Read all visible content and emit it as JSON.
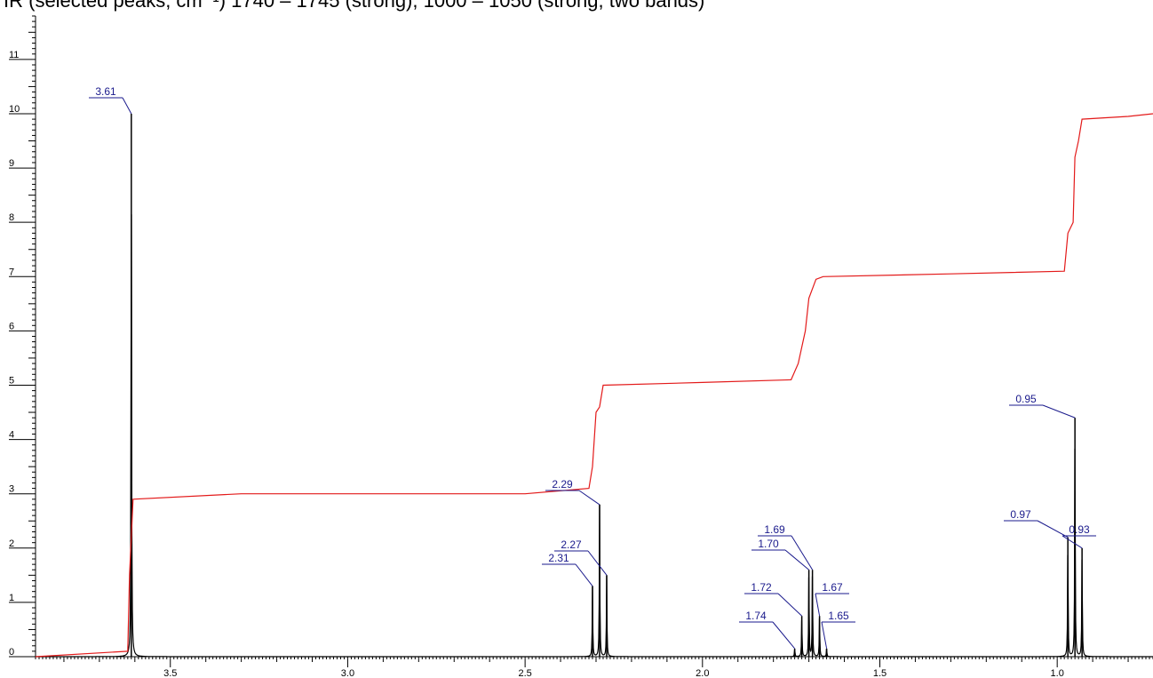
{
  "header_text": "IR (selected peaks, cm⁻¹) 1740 – 1745 (strong), 1000 – 1050 (strong, two bands)",
  "colors": {
    "spectrum": "#000000",
    "integral": "#e31a1a",
    "label": "#1a1a8c",
    "axis": "#000000"
  },
  "chart_data": {
    "type": "line",
    "title": "",
    "xlabel": "",
    "ylabel": "",
    "x_reversed": true,
    "xlim": [
      3.88,
      0.73
    ],
    "ylim": [
      0,
      11.8
    ],
    "xticks": [
      "3.5",
      "3.0",
      "2.5",
      "2.0",
      "1.5",
      "1.0"
    ],
    "yticks": [
      "0",
      "1",
      "2",
      "3",
      "4",
      "5",
      "6",
      "7",
      "8",
      "9",
      "10",
      "11"
    ],
    "series": [
      {
        "kind": "spectrum",
        "peaks": [
          {
            "x": 3.61,
            "height": 10.0
          },
          {
            "x": 2.31,
            "height": 1.3
          },
          {
            "x": 2.29,
            "height": 2.8
          },
          {
            "x": 2.27,
            "height": 1.5
          },
          {
            "x": 1.74,
            "height": 0.15
          },
          {
            "x": 1.72,
            "height": 0.75
          },
          {
            "x": 1.7,
            "height": 1.6
          },
          {
            "x": 1.69,
            "height": 1.6
          },
          {
            "x": 1.67,
            "height": 0.75
          },
          {
            "x": 1.65,
            "height": 0.15
          },
          {
            "x": 0.97,
            "height": 2.2
          },
          {
            "x": 0.95,
            "height": 4.4
          },
          {
            "x": 0.93,
            "height": 2.0
          }
        ]
      },
      {
        "kind": "integral",
        "points": [
          [
            3.88,
            0.0
          ],
          [
            3.62,
            0.1
          ],
          [
            3.615,
            1.5
          ],
          [
            3.605,
            2.9
          ],
          [
            3.3,
            3.0
          ],
          [
            2.5,
            3.0
          ],
          [
            2.32,
            3.1
          ],
          [
            2.31,
            3.5
          ],
          [
            2.3,
            4.5
          ],
          [
            2.29,
            4.6
          ],
          [
            2.28,
            5.0
          ],
          [
            2.0,
            5.05
          ],
          [
            1.75,
            5.1
          ],
          [
            1.73,
            5.4
          ],
          [
            1.71,
            6.0
          ],
          [
            1.7,
            6.6
          ],
          [
            1.68,
            6.95
          ],
          [
            1.66,
            7.0
          ],
          [
            1.3,
            7.05
          ],
          [
            0.98,
            7.1
          ],
          [
            0.97,
            7.8
          ],
          [
            0.955,
            8.0
          ],
          [
            0.95,
            9.2
          ],
          [
            0.94,
            9.5
          ],
          [
            0.93,
            9.9
          ],
          [
            0.8,
            9.95
          ],
          [
            0.73,
            10.0
          ]
        ]
      }
    ],
    "peak_labels": [
      {
        "text": "3.61",
        "x": 3.61
      },
      {
        "text": "2.29",
        "x": 2.29
      },
      {
        "text": "2.27",
        "x": 2.27
      },
      {
        "text": "2.31",
        "x": 2.31
      },
      {
        "text": "1.69",
        "x": 1.69
      },
      {
        "text": "1.70",
        "x": 1.7
      },
      {
        "text": "1.72",
        "x": 1.72
      },
      {
        "text": "1.67",
        "x": 1.67
      },
      {
        "text": "1.74",
        "x": 1.74
      },
      {
        "text": "1.65",
        "x": 1.65
      },
      {
        "text": "0.95",
        "x": 0.95
      },
      {
        "text": "0.97",
        "x": 0.97
      },
      {
        "text": "0.93",
        "x": 0.93
      }
    ]
  }
}
